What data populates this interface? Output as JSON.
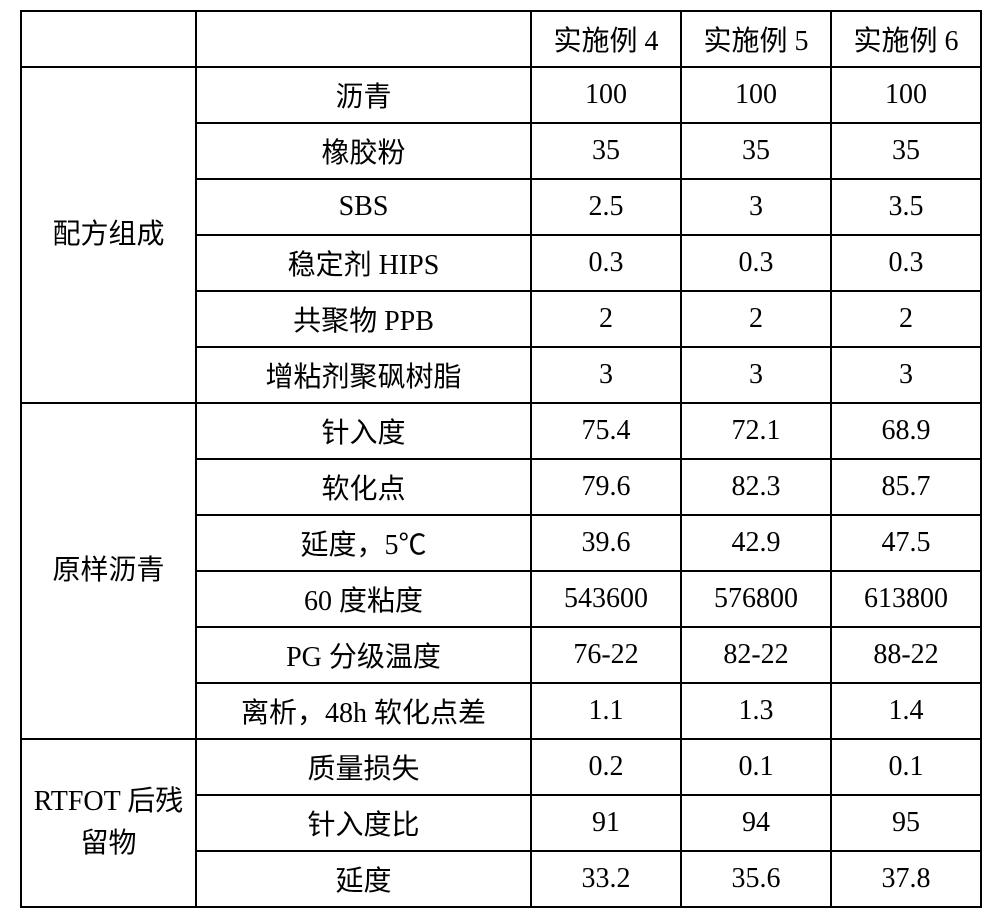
{
  "table": {
    "type": "table",
    "background_color": "#ffffff",
    "border_color": "#000000",
    "text_color": "#000000",
    "font_size": 28,
    "header": {
      "blank1": "",
      "blank2": "",
      "col3": "实施例 4",
      "col4": "实施例 5",
      "col5": "实施例 6"
    },
    "sections": {
      "formula": {
        "label": "配方组成",
        "rows": [
          {
            "param": "沥青",
            "v4": "100",
            "v5": "100",
            "v6": "100"
          },
          {
            "param": "橡胶粉",
            "v4": "35",
            "v5": "35",
            "v6": "35"
          },
          {
            "param": "SBS",
            "v4": "2.5",
            "v5": "3",
            "v6": "3.5"
          },
          {
            "param": "稳定剂 HIPS",
            "v4": "0.3",
            "v5": "0.3",
            "v6": "0.3"
          },
          {
            "param": "共聚物 PPB",
            "v4": "2",
            "v5": "2",
            "v6": "2"
          },
          {
            "param": "增粘剂聚砜树脂",
            "v4": "3",
            "v5": "3",
            "v6": "3"
          }
        ]
      },
      "original": {
        "label": "原样沥青",
        "rows": [
          {
            "param": "针入度",
            "v4": "75.4",
            "v5": "72.1",
            "v6": "68.9"
          },
          {
            "param": "软化点",
            "v4": "79.6",
            "v5": "82.3",
            "v6": "85.7"
          },
          {
            "param": "延度，5℃",
            "v4": "39.6",
            "v5": "42.9",
            "v6": "47.5"
          },
          {
            "param": "60 度粘度",
            "v4": "543600",
            "v5": "576800",
            "v6": "613800"
          },
          {
            "param": "PG 分级温度",
            "v4": "76-22",
            "v5": "82-22",
            "v6": "88-22"
          },
          {
            "param": "离析，48h 软化点差",
            "v4": "1.1",
            "v5": "1.3",
            "v6": "1.4"
          }
        ]
      },
      "rtfot": {
        "label_line1": "RTFOT 后残",
        "label_line2": "留物",
        "rows": [
          {
            "param": "质量损失",
            "v4": "0.2",
            "v5": "0.1",
            "v6": "0.1"
          },
          {
            "param": "针入度比",
            "v4": "91",
            "v5": "94",
            "v6": "95"
          },
          {
            "param": "延度",
            "v4": "33.2",
            "v5": "35.6",
            "v6": "37.8"
          }
        ]
      }
    }
  }
}
